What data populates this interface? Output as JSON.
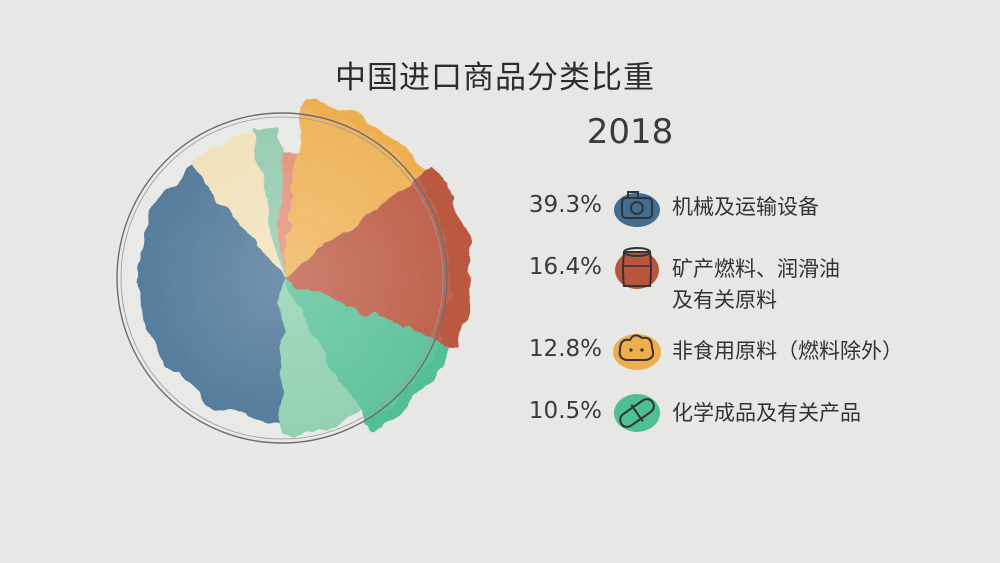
{
  "chart_data": {
    "type": "pie",
    "title": "中国进口商品分类比重",
    "subtitle": "2018",
    "legend_position": "right",
    "slices": [
      {
        "label": "机械及运输设备",
        "value": 39.3,
        "value_label": "39.3%",
        "color": "#2e5f86",
        "icon": "camera-icon"
      },
      {
        "label": "矿产燃料、润滑油\n及有关原料",
        "value": 16.4,
        "value_label": "16.4%",
        "color": "#b4442a",
        "icon": "barrel-icon"
      },
      {
        "label": "非食用原料（燃料除外）",
        "value": 12.8,
        "value_label": "12.8%",
        "color": "#efa73c",
        "icon": "cotton-icon"
      },
      {
        "label": "化学成品及有关产品",
        "value": 10.5,
        "value_label": "10.5%",
        "color": "#3fb98a",
        "icon": "pill-icon"
      }
    ],
    "unlabeled_slices": [
      {
        "value": 8.5,
        "color": "#7cc9a4"
      },
      {
        "value": 2.0,
        "color": "#e07f62"
      },
      {
        "value": 3.0,
        "color": "#82c4a4"
      },
      {
        "value": 7.5,
        "color": "#f1dfaf"
      }
    ]
  }
}
